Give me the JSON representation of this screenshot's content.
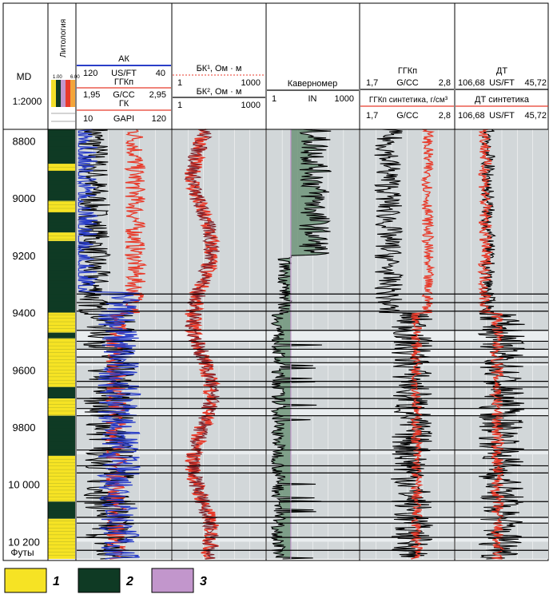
{
  "header": {
    "depth_col": {
      "md": "MD",
      "scale": "1:2000"
    },
    "lithology_col": {
      "title": "Литология",
      "scale_top": "1.00",
      "scale_right": "6.00"
    },
    "track1": [
      {
        "name": "АК",
        "min": "120",
        "unit": "US/FT",
        "max": "40",
        "color": "#2a3ec8"
      },
      {
        "name": "ГГКп",
        "min": "1,95",
        "unit": "G/CC",
        "max": "2,95",
        "color": "#e83a2a"
      },
      {
        "name": "ГК",
        "min": "10",
        "unit": "GAPI",
        "max": "120",
        "color": "#000000"
      }
    ],
    "track2": [
      {
        "name": "БК¹, Ом · м",
        "min": "1",
        "max": "1000",
        "color": "#e83a2a"
      },
      {
        "name": "БК², Ом · м",
        "min": "1",
        "max": "1000",
        "color": "#000000"
      }
    ],
    "track3": {
      "name": "Каверномер",
      "min": "1",
      "unit": "IN",
      "max": "1000"
    },
    "track4": [
      {
        "name": "ГГКп",
        "min": "1,7",
        "unit": "G/CC",
        "max": "2,8",
        "color": "#000000"
      },
      {
        "name": "ГГКп синтетика, г/см³",
        "min": "1,7",
        "unit": "G/CC",
        "max": "2,8",
        "color": "#e83a2a"
      }
    ],
    "track5": [
      {
        "name": "ДТ",
        "min": "106,68",
        "unit": "US/FT",
        "max": "45,72",
        "color": "#000000"
      },
      {
        "name": "ДТ синтетика",
        "min": "106,68",
        "unit": "US/FT",
        "max": "45,72",
        "color": "#e83a2a"
      }
    ]
  },
  "chart_data": {
    "type": "line",
    "y_axis": {
      "label": "Футы",
      "range": [
        8760,
        10260
      ],
      "ticks": [
        "8800",
        "9000",
        "9200",
        "9400",
        "9600",
        "9800",
        "10 000",
        "10 200"
      ],
      "tick_values": [
        8800,
        9000,
        9200,
        9400,
        9600,
        9800,
        10000,
        10200
      ]
    },
    "lithology_intervals": [
      {
        "from": 8760,
        "to": 8880,
        "code": 2
      },
      {
        "from": 8880,
        "to": 8905,
        "code": 1
      },
      {
        "from": 8905,
        "to": 9010,
        "code": 2
      },
      {
        "from": 9010,
        "to": 9050,
        "code": 1
      },
      {
        "from": 9050,
        "to": 9120,
        "code": 2
      },
      {
        "from": 9120,
        "to": 9150,
        "code": 1
      },
      {
        "from": 9150,
        "to": 9400,
        "code": 2
      },
      {
        "from": 9400,
        "to": 9470,
        "code": 1
      },
      {
        "from": 9470,
        "to": 9490,
        "code": 2
      },
      {
        "from": 9490,
        "to": 9660,
        "code": 1
      },
      {
        "from": 9660,
        "to": 9700,
        "code": 2
      },
      {
        "from": 9700,
        "to": 9760,
        "code": 1
      },
      {
        "from": 9760,
        "to": 9900,
        "code": 2
      },
      {
        "from": 9900,
        "to": 10060,
        "code": 1
      },
      {
        "from": 10060,
        "to": 10120,
        "code": 2
      },
      {
        "from": 10120,
        "to": 10260,
        "code": 1
      }
    ],
    "legend": [
      {
        "key": "1",
        "color": "#f6e324"
      },
      {
        "key": "2",
        "color": "#0f3a24"
      },
      {
        "key": "3",
        "color": "#c296cc"
      }
    ]
  },
  "colors": {
    "track_bg": "#d2d7d9",
    "black": "#000000",
    "red": "#e83a2a",
    "blue": "#2a3ec8",
    "maroon": "#7a1f28",
    "caliper_fill": "#6f9479"
  }
}
